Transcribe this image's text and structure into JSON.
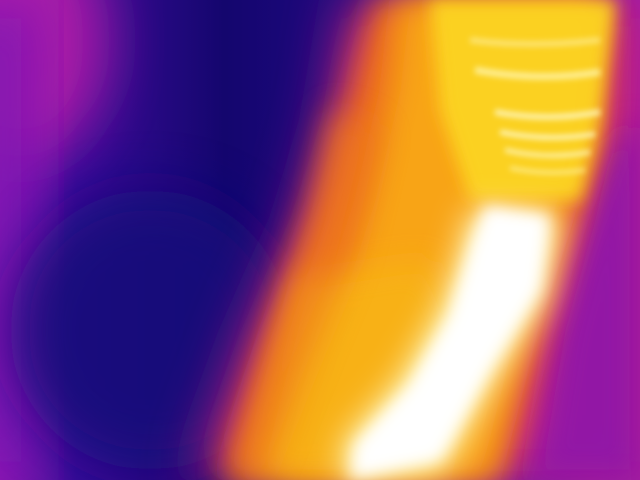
{
  "image": {
    "kind": "thermal-camera-frame",
    "palette": "ironbow",
    "colors": {
      "coldest": "#14066e",
      "cold": "#2a0c8e",
      "cool": "#7a14b4",
      "mild": "#b81e8c",
      "warm": "#e85a1c",
      "hot": "#f8a416",
      "hotter": "#fcd420",
      "hottest": "#ffffff"
    }
  }
}
